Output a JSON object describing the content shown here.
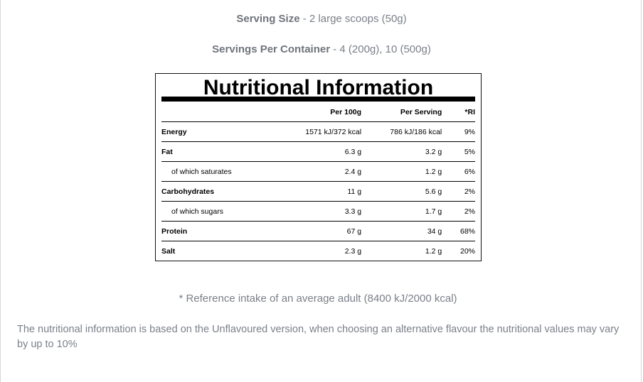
{
  "serving": {
    "size_label": "Serving Size",
    "size_value": " - 2 large scoops (50g)",
    "per_container_label": "Servings Per Container",
    "per_container_value": " - 4 (200g), 10 (500g)"
  },
  "panel": {
    "title": "Nutritional Information",
    "headers": [
      "",
      "Per 100g",
      "Per Serving",
      "*RI"
    ],
    "rows": [
      {
        "label": "Energy",
        "per100": "1571 kJ/372 kcal",
        "perServing": "786 kJ/186 kcal",
        "ri": "9%"
      },
      {
        "label": "Fat",
        "per100": "6.3 g",
        "perServing": "3.2 g",
        "ri": "5%"
      },
      {
        "label": "of which saturates",
        "per100": "2.4 g",
        "perServing": "1.2 g",
        "ri": "6%"
      },
      {
        "label": "Carbohydrates",
        "per100": "11 g",
        "perServing": "5.6 g",
        "ri": "2%"
      },
      {
        "label": "of which sugars",
        "per100": "3.3 g",
        "perServing": "1.7 g",
        "ri": "2%"
      },
      {
        "label": "Protein",
        "per100": "67 g",
        "perServing": "34 g",
        "ri": "68%"
      },
      {
        "label": "Salt",
        "per100": "2.3 g",
        "perServing": "1.2 g",
        "ri": "20%"
      }
    ]
  },
  "footnote": "* Reference intake of an average adult (8400 kJ/2000 kcal)",
  "disclaimer": "The nutritional information is based on the Unflavoured version, when choosing an alternative flavour the nutritional values may vary by up to 10%"
}
